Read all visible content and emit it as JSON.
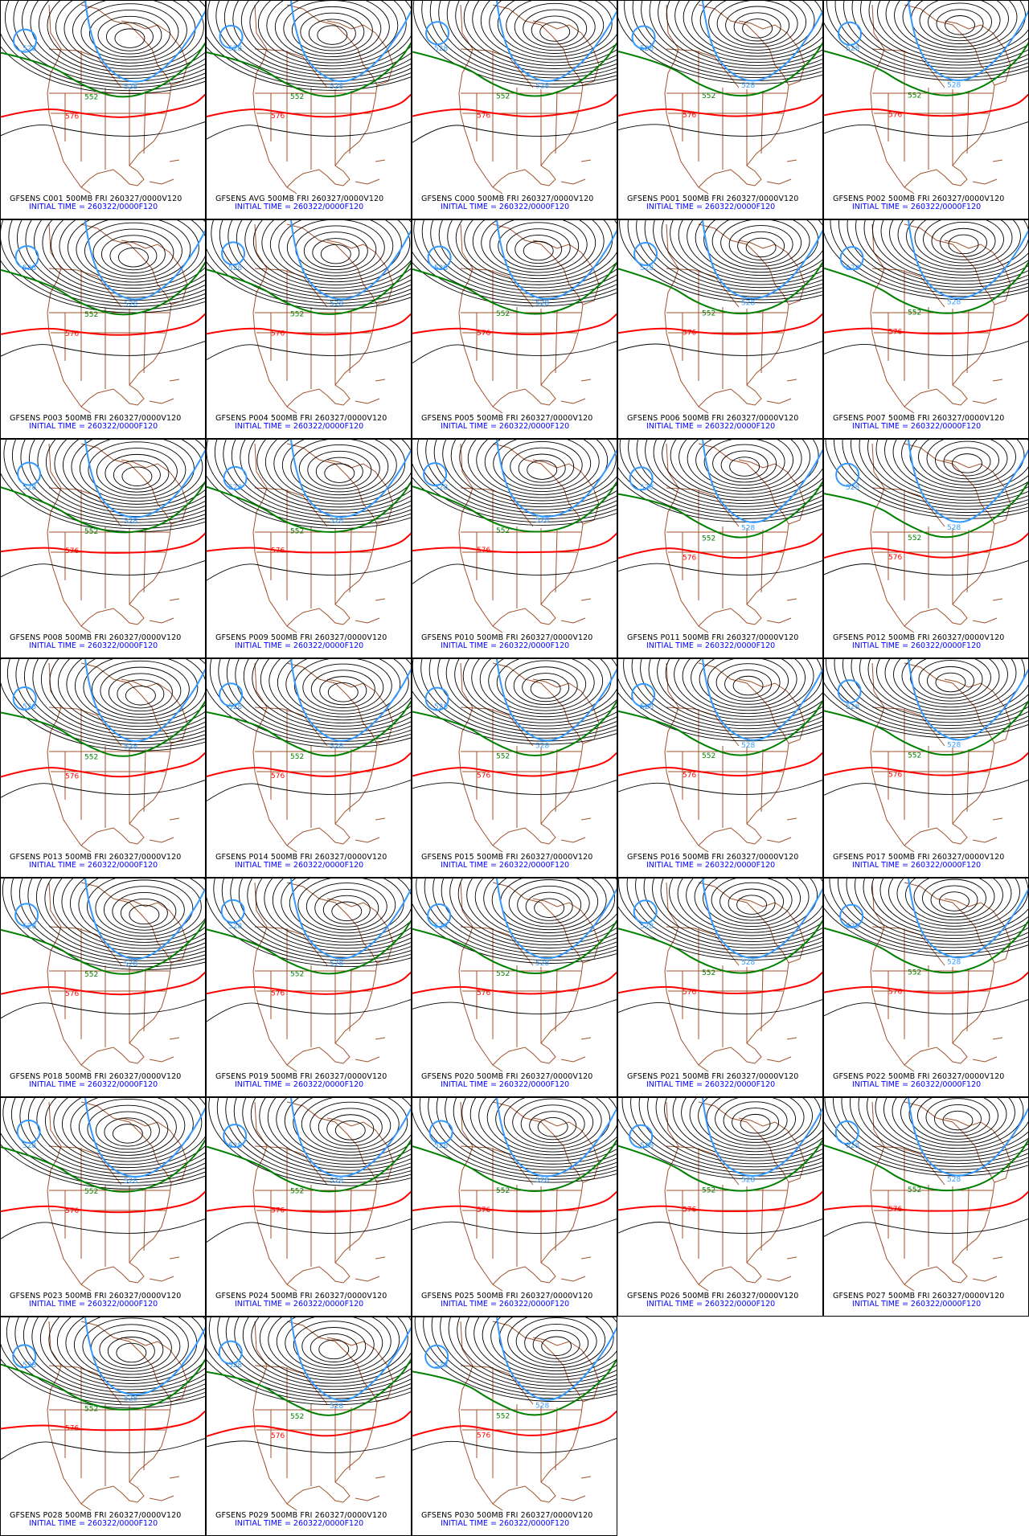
{
  "members": [
    {
      "id": "C001",
      "caption": "GFSENS C001 500MB FRI 260327/0000V120"
    },
    {
      "id": "AVG",
      "caption": "GFSENS AVG 500MB FRI 260327/0000V120"
    },
    {
      "id": "C000",
      "caption": "GFSENS C000 500MB FRI 260327/0000V120"
    },
    {
      "id": "P001",
      "caption": "GFSENS P001 500MB FRI 260327/0000V120"
    },
    {
      "id": "P002",
      "caption": "GFSENS P002 500MB FRI 260327/0000V120"
    },
    {
      "id": "P003",
      "caption": "GFSENS P003 500MB FRI 260327/0000V120"
    },
    {
      "id": "P004",
      "caption": "GFSENS P004 500MB FRI 260327/0000V120"
    },
    {
      "id": "P005",
      "caption": "GFSENS P005 500MB FRI 260327/0000V120"
    },
    {
      "id": "P006",
      "caption": "GFSENS P006 500MB FRI 260327/0000V120"
    },
    {
      "id": "P007",
      "caption": "GFSENS P007 500MB FRI 260327/0000V120"
    },
    {
      "id": "P008",
      "caption": "GFSENS P008 500MB FRI 260327/0000V120"
    },
    {
      "id": "P009",
      "caption": "GFSENS P009 500MB FRI 260327/0000V120"
    },
    {
      "id": "P010",
      "caption": "GFSENS P010 500MB FRI 260327/0000V120"
    },
    {
      "id": "P011",
      "caption": "GFSENS P011 500MB FRI 260327/0000V120"
    },
    {
      "id": "P012",
      "caption": "GFSENS P012 500MB FRI 260327/0000V120"
    },
    {
      "id": "P013",
      "caption": "GFSENS P013 500MB FRI 260327/0000V120"
    },
    {
      "id": "P014",
      "caption": "GFSENS P014 500MB FRI 260327/0000V120"
    },
    {
      "id": "P015",
      "caption": "GFSENS P015 500MB FRI 260327/0000V120"
    },
    {
      "id": "P016",
      "caption": "GFSENS P016 500MB FRI 260327/0000V120"
    },
    {
      "id": "P017",
      "caption": "GFSENS P017 500MB FRI 260327/0000V120"
    },
    {
      "id": "P018",
      "caption": "GFSENS P018 500MB FRI 260327/0000V120"
    },
    {
      "id": "P019",
      "caption": "GFSENS P019 500MB FRI 260327/0000V120"
    },
    {
      "id": "P020",
      "caption": "GFSENS P020 500MB FRI 260327/0000V120"
    },
    {
      "id": "P021",
      "caption": "GFSENS P021 500MB FRI 260327/0000V120"
    },
    {
      "id": "P022",
      "caption": "GFSENS P022 500MB FRI 260327/0000V120"
    },
    {
      "id": "P023",
      "caption": "GFSENS P023 500MB FRI 260327/0000V120"
    },
    {
      "id": "P024",
      "caption": "GFSENS P024 500MB FRI 260327/0000V120"
    },
    {
      "id": "P025",
      "caption": "GFSENS P025 500MB FRI 260327/0000V120"
    },
    {
      "id": "P026",
      "caption": "GFSENS P026 500MB FRI 260327/0000V120"
    },
    {
      "id": "P027",
      "caption": "GFSENS P027 500MB FRI 260327/0000V120"
    },
    {
      "id": "P028",
      "caption": "GFSENS P028 500MB FRI 260327/0000V120"
    },
    {
      "id": "P029",
      "caption": "GFSENS P029 500MB FRI 260327/0000V120"
    },
    {
      "id": "P030",
      "caption": "GFSENS P030 500MB FRI 260327/0000V120"
    }
  ],
  "initial_time": "INITIAL TIME = 260322/0000F120",
  "contour_labels": {
    "blue": "528",
    "green": "552",
    "red": "576"
  },
  "colors": {
    "blue": "#3399ff",
    "green": "#008000",
    "red": "#ff0000",
    "map": "#a0522d",
    "contour": "#000000",
    "caption_blue": "#0000ff"
  }
}
